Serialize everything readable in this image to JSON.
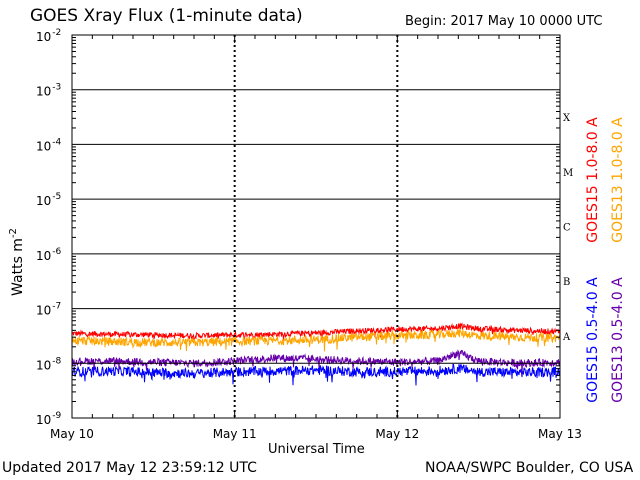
{
  "header": {
    "title": "GOES Xray Flux (1-minute data)",
    "begin": "Begin:  2017 May 10 0000 UTC"
  },
  "footer": {
    "updated": "Updated 2017 May 12 23:59:12 UTC",
    "credit": "NOAA/SWPC Boulder, CO USA"
  },
  "chart_data": {
    "type": "line",
    "title": "GOES Xray Flux (1-minute data)",
    "xlabel": "Universal Time",
    "ylabel": "Watts m⁻²",
    "yscale": "log",
    "ylim": [
      1e-09,
      0.01
    ],
    "xlim": [
      "2017-05-10 00:00",
      "2017-05-13 00:00"
    ],
    "x_ticks": [
      "May 10",
      "May 11",
      "May 12",
      "May 13"
    ],
    "y_ticks": [
      {
        "base": "10",
        "exp": "-9"
      },
      {
        "base": "10",
        "exp": "-8"
      },
      {
        "base": "10",
        "exp": "-7"
      },
      {
        "base": "10",
        "exp": "-6"
      },
      {
        "base": "10",
        "exp": "-5"
      },
      {
        "base": "10",
        "exp": "-4"
      },
      {
        "base": "10",
        "exp": "-3"
      },
      {
        "base": "10",
        "exp": "-2"
      }
    ],
    "flare_classes": [
      {
        "label": "A",
        "value": 1e-08
      },
      {
        "label": "B",
        "value": 1e-07
      },
      {
        "label": "C",
        "value": 1e-06
      },
      {
        "label": "M",
        "value": 1e-05
      },
      {
        "label": "X",
        "value": 0.0001
      }
    ],
    "grid": true,
    "legend_position": "right",
    "x": [
      "2017-05-10 00:00",
      "2017-05-10 06:00",
      "2017-05-10 12:00",
      "2017-05-10 18:00",
      "2017-05-11 00:00",
      "2017-05-11 06:00",
      "2017-05-11 12:00",
      "2017-05-11 18:00",
      "2017-05-12 00:00",
      "2017-05-12 06:00",
      "2017-05-12 09:00",
      "2017-05-12 12:00",
      "2017-05-12 18:00",
      "2017-05-13 00:00"
    ],
    "series": [
      {
        "name": "GOES15 1.0-8.0 A",
        "color": "#ff0000",
        "values": [
          3.5e-08,
          3.4e-08,
          3.3e-08,
          3.2e-08,
          3.3e-08,
          3.4e-08,
          3.6e-08,
          3.9e-08,
          4.2e-08,
          4.3e-08,
          4.8e-08,
          4.3e-08,
          4e-08,
          3.8e-08
        ]
      },
      {
        "name": "GOES13 1.0-8.0 A",
        "color": "#ffa500",
        "values": [
          2.6e-08,
          2.5e-08,
          2.4e-08,
          2.4e-08,
          2.5e-08,
          2.6e-08,
          2.7e-08,
          3e-08,
          3.2e-08,
          3.3e-08,
          3.6e-08,
          3.2e-08,
          3e-08,
          2.9e-08
        ]
      },
      {
        "name": "GOES15 0.5-4.0 A",
        "color": "#0000ff",
        "values": [
          7e-09,
          7.2e-09,
          6.8e-09,
          6.5e-09,
          7e-09,
          7.2e-09,
          7.5e-09,
          7e-09,
          7e-09,
          7.3e-09,
          8e-09,
          7e-09,
          6.8e-09,
          7e-09
        ]
      },
      {
        "name": "GOES13 0.5-4.0 A",
        "color": "#6600aa",
        "values": [
          1.1e-08,
          1.1e-08,
          1.05e-08,
          1e-08,
          1.1e-08,
          1.25e-08,
          1.2e-08,
          1.1e-08,
          1.05e-08,
          1.1e-08,
          1.55e-08,
          1.1e-08,
          1e-08,
          1.05e-08
        ]
      }
    ]
  }
}
